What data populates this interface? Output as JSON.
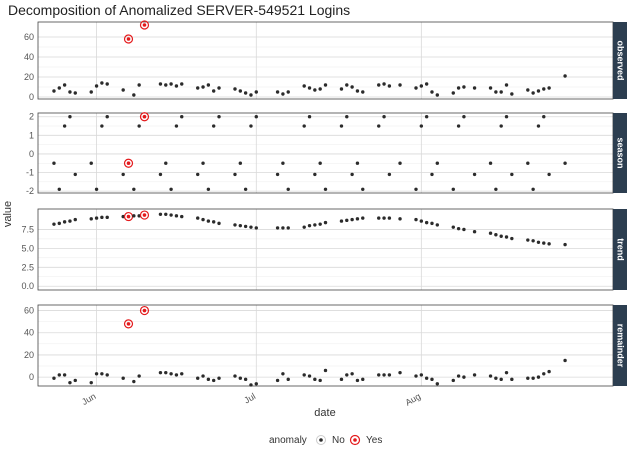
{
  "chart_data": {
    "type": "scatter",
    "title": "Decomposition of Anomalized SERVER-549521 Logins",
    "xlabel": "date",
    "ylabel": "value",
    "x_ticks": [
      "Jun",
      "Jul",
      "Aug"
    ],
    "x_tick_dates": [
      "2011-06-01",
      "2011-07-01",
      "2011-08-01"
    ],
    "x_range": [
      "2011-05-21",
      "2011-09-06"
    ],
    "legend": {
      "title": "anomaly",
      "entries": [
        "No",
        "Yes"
      ],
      "position": "bottom"
    },
    "colors": {
      "normal": "#2b2b2b",
      "anomaly": "#e41a1c",
      "strip": "#2c3e50"
    },
    "facets": [
      {
        "name": "observed",
        "ylim": [
          -2,
          75
        ],
        "yticks": [
          "0",
          "20",
          "40",
          "60"
        ],
        "ytick_values": [
          0,
          20,
          40,
          60
        ],
        "points": [
          [
            "2011-05-24",
            6
          ],
          [
            "2011-05-25",
            9
          ],
          [
            "2011-05-26",
            12
          ],
          [
            "2011-05-27",
            5
          ],
          [
            "2011-05-28",
            4
          ],
          [
            "2011-05-31",
            5
          ],
          [
            "2011-06-01",
            11
          ],
          [
            "2011-06-02",
            14
          ],
          [
            "2011-06-03",
            13
          ],
          [
            "2011-06-06",
            7
          ],
          [
            "2011-06-07",
            58,
            "yes"
          ],
          [
            "2011-06-08",
            2
          ],
          [
            "2011-06-09",
            12
          ],
          [
            "2011-06-10",
            72,
            "yes"
          ],
          [
            "2011-06-13",
            13
          ],
          [
            "2011-06-14",
            12
          ],
          [
            "2011-06-15",
            13
          ],
          [
            "2011-06-16",
            11
          ],
          [
            "2011-06-17",
            13
          ],
          [
            "2011-06-20",
            9
          ],
          [
            "2011-06-21",
            10
          ],
          [
            "2011-06-22",
            12
          ],
          [
            "2011-06-23",
            6
          ],
          [
            "2011-06-24",
            9
          ],
          [
            "2011-06-27",
            8
          ],
          [
            "2011-06-28",
            6
          ],
          [
            "2011-06-29",
            4
          ],
          [
            "2011-06-30",
            2
          ],
          [
            "2011-07-01",
            5
          ],
          [
            "2011-07-05",
            5
          ],
          [
            "2011-07-06",
            3
          ],
          [
            "2011-07-07",
            5
          ],
          [
            "2011-07-10",
            11
          ],
          [
            "2011-07-11",
            9
          ],
          [
            "2011-07-12",
            7
          ],
          [
            "2011-07-13",
            8
          ],
          [
            "2011-07-14",
            12
          ],
          [
            "2011-07-17",
            8
          ],
          [
            "2011-07-18",
            12
          ],
          [
            "2011-07-19",
            10
          ],
          [
            "2011-07-20",
            6
          ],
          [
            "2011-07-21",
            5
          ],
          [
            "2011-07-24",
            12
          ],
          [
            "2011-07-25",
            13
          ],
          [
            "2011-07-26",
            11
          ],
          [
            "2011-07-28",
            12
          ],
          [
            "2011-07-31",
            9
          ],
          [
            "2011-08-01",
            11
          ],
          [
            "2011-08-02",
            13
          ],
          [
            "2011-08-03",
            5
          ],
          [
            "2011-08-04",
            2
          ],
          [
            "2011-08-07",
            4
          ],
          [
            "2011-08-08",
            9
          ],
          [
            "2011-08-09",
            10
          ],
          [
            "2011-08-11",
            9
          ],
          [
            "2011-08-14",
            9
          ],
          [
            "2011-08-15",
            5
          ],
          [
            "2011-08-16",
            5
          ],
          [
            "2011-08-17",
            12
          ],
          [
            "2011-08-18",
            3
          ],
          [
            "2011-08-21",
            7
          ],
          [
            "2011-08-22",
            4
          ],
          [
            "2011-08-23",
            6
          ],
          [
            "2011-08-24",
            8
          ],
          [
            "2011-08-25",
            9
          ],
          [
            "2011-08-28",
            21
          ]
        ]
      },
      {
        "name": "season",
        "ylim": [
          -2.1,
          2.2
        ],
        "yticks": [
          "-2",
          "-1",
          "0",
          "1",
          "2"
        ],
        "ytick_values": [
          -2,
          -1,
          0,
          1,
          2
        ],
        "points": [
          [
            "2011-05-24",
            -0.5
          ],
          [
            "2011-05-25",
            -1.9
          ],
          [
            "2011-05-26",
            1.5
          ],
          [
            "2011-05-27",
            2.0
          ],
          [
            "2011-05-28",
            -1.1
          ],
          [
            "2011-05-31",
            -0.5
          ],
          [
            "2011-06-01",
            -1.9
          ],
          [
            "2011-06-02",
            1.5
          ],
          [
            "2011-06-03",
            2.0
          ],
          [
            "2011-06-06",
            -1.1
          ],
          [
            "2011-06-07",
            -0.5,
            "yes"
          ],
          [
            "2011-06-08",
            -1.9
          ],
          [
            "2011-06-09",
            1.5
          ],
          [
            "2011-06-10",
            2.0,
            "yes"
          ],
          [
            "2011-06-13",
            -1.1
          ],
          [
            "2011-06-14",
            -0.5
          ],
          [
            "2011-06-15",
            -1.9
          ],
          [
            "2011-06-16",
            1.5
          ],
          [
            "2011-06-17",
            2.0
          ],
          [
            "2011-06-20",
            -1.1
          ],
          [
            "2011-06-21",
            -0.5
          ],
          [
            "2011-06-22",
            -1.9
          ],
          [
            "2011-06-23",
            1.5
          ],
          [
            "2011-06-24",
            2.0
          ],
          [
            "2011-06-27",
            -1.1
          ],
          [
            "2011-06-28",
            -0.5
          ],
          [
            "2011-06-29",
            -1.9
          ],
          [
            "2011-06-30",
            1.5
          ],
          [
            "2011-07-01",
            2.0
          ],
          [
            "2011-07-05",
            -1.1
          ],
          [
            "2011-07-06",
            -0.5
          ],
          [
            "2011-07-07",
            -1.9
          ],
          [
            "2011-07-10",
            1.5
          ],
          [
            "2011-07-11",
            2.0
          ],
          [
            "2011-07-12",
            -1.1
          ],
          [
            "2011-07-13",
            -0.5
          ],
          [
            "2011-07-14",
            -1.9
          ],
          [
            "2011-07-17",
            1.5
          ],
          [
            "2011-07-18",
            2.0
          ],
          [
            "2011-07-19",
            -1.1
          ],
          [
            "2011-07-20",
            -0.5
          ],
          [
            "2011-07-21",
            -1.9
          ],
          [
            "2011-07-24",
            1.5
          ],
          [
            "2011-07-25",
            2.0
          ],
          [
            "2011-07-26",
            -1.1
          ],
          [
            "2011-07-28",
            -0.5
          ],
          [
            "2011-07-31",
            -1.9
          ],
          [
            "2011-08-01",
            1.5
          ],
          [
            "2011-08-02",
            2.0
          ],
          [
            "2011-08-03",
            -1.1
          ],
          [
            "2011-08-04",
            -0.5
          ],
          [
            "2011-08-07",
            -1.9
          ],
          [
            "2011-08-08",
            1.5
          ],
          [
            "2011-08-09",
            2.0
          ],
          [
            "2011-08-11",
            -1.1
          ],
          [
            "2011-08-14",
            -0.5
          ],
          [
            "2011-08-15",
            -1.9
          ],
          [
            "2011-08-16",
            1.5
          ],
          [
            "2011-08-17",
            2.0
          ],
          [
            "2011-08-18",
            -1.1
          ],
          [
            "2011-08-21",
            -0.5
          ],
          [
            "2011-08-22",
            -1.9
          ],
          [
            "2011-08-23",
            1.5
          ],
          [
            "2011-08-24",
            2.0
          ],
          [
            "2011-08-25",
            -1.1
          ],
          [
            "2011-08-28",
            -0.5
          ]
        ]
      },
      {
        "name": "trend",
        "ylim": [
          -0.5,
          10.2
        ],
        "yticks": [
          "0.0",
          "2.5",
          "5.0",
          "7.5"
        ],
        "ytick_values": [
          0,
          2.5,
          5,
          7.5
        ],
        "points": [
          [
            "2011-05-24",
            8.2
          ],
          [
            "2011-05-25",
            8.3
          ],
          [
            "2011-05-26",
            8.5
          ],
          [
            "2011-05-27",
            8.6
          ],
          [
            "2011-05-28",
            8.8
          ],
          [
            "2011-05-31",
            8.9
          ],
          [
            "2011-06-01",
            9.0
          ],
          [
            "2011-06-02",
            9.1
          ],
          [
            "2011-06-03",
            9.1
          ],
          [
            "2011-06-06",
            9.2
          ],
          [
            "2011-06-07",
            9.2,
            "yes"
          ],
          [
            "2011-06-08",
            9.3
          ],
          [
            "2011-06-09",
            9.3
          ],
          [
            "2011-06-10",
            9.4,
            "yes"
          ],
          [
            "2011-06-13",
            9.5
          ],
          [
            "2011-06-14",
            9.5
          ],
          [
            "2011-06-15",
            9.4
          ],
          [
            "2011-06-16",
            9.3
          ],
          [
            "2011-06-17",
            9.2
          ],
          [
            "2011-06-20",
            9.0
          ],
          [
            "2011-06-21",
            8.8
          ],
          [
            "2011-06-22",
            8.6
          ],
          [
            "2011-06-23",
            8.5
          ],
          [
            "2011-06-24",
            8.3
          ],
          [
            "2011-06-27",
            8.1
          ],
          [
            "2011-06-28",
            8.0
          ],
          [
            "2011-06-29",
            7.9
          ],
          [
            "2011-06-30",
            7.8
          ],
          [
            "2011-07-01",
            7.7
          ],
          [
            "2011-07-05",
            7.7
          ],
          [
            "2011-07-06",
            7.7
          ],
          [
            "2011-07-07",
            7.7
          ],
          [
            "2011-07-10",
            7.8
          ],
          [
            "2011-07-11",
            8.0
          ],
          [
            "2011-07-12",
            8.1
          ],
          [
            "2011-07-13",
            8.2
          ],
          [
            "2011-07-14",
            8.4
          ],
          [
            "2011-07-17",
            8.6
          ],
          [
            "2011-07-18",
            8.7
          ],
          [
            "2011-07-19",
            8.8
          ],
          [
            "2011-07-20",
            8.9
          ],
          [
            "2011-07-21",
            9.0
          ],
          [
            "2011-07-24",
            9.0
          ],
          [
            "2011-07-25",
            9.0
          ],
          [
            "2011-07-26",
            9.0
          ],
          [
            "2011-07-28",
            8.9
          ],
          [
            "2011-07-31",
            8.8
          ],
          [
            "2011-08-01",
            8.6
          ],
          [
            "2011-08-02",
            8.4
          ],
          [
            "2011-08-03",
            8.3
          ],
          [
            "2011-08-04",
            8.1
          ],
          [
            "2011-08-07",
            7.8
          ],
          [
            "2011-08-08",
            7.6
          ],
          [
            "2011-08-09",
            7.5
          ],
          [
            "2011-08-11",
            7.2
          ],
          [
            "2011-08-14",
            7.0
          ],
          [
            "2011-08-15",
            6.8
          ],
          [
            "2011-08-16",
            6.6
          ],
          [
            "2011-08-17",
            6.5
          ],
          [
            "2011-08-18",
            6.3
          ],
          [
            "2011-08-21",
            6.1
          ],
          [
            "2011-08-22",
            6.0
          ],
          [
            "2011-08-23",
            5.8
          ],
          [
            "2011-08-24",
            5.7
          ],
          [
            "2011-08-25",
            5.6
          ],
          [
            "2011-08-28",
            5.5
          ]
        ]
      },
      {
        "name": "remainder",
        "ylim": [
          -8,
          65
        ],
        "yticks": [
          "0",
          "20",
          "40",
          "60"
        ],
        "ytick_values": [
          0,
          20,
          40,
          60
        ],
        "points": [
          [
            "2011-05-24",
            -1
          ],
          [
            "2011-05-25",
            2
          ],
          [
            "2011-05-26",
            2
          ],
          [
            "2011-05-27",
            -5
          ],
          [
            "2011-05-28",
            -3
          ],
          [
            "2011-05-31",
            -5
          ],
          [
            "2011-06-01",
            3
          ],
          [
            "2011-06-02",
            3
          ],
          [
            "2011-06-03",
            2
          ],
          [
            "2011-06-06",
            -1
          ],
          [
            "2011-06-07",
            48,
            "yes"
          ],
          [
            "2011-06-08",
            -4
          ],
          [
            "2011-06-09",
            1
          ],
          [
            "2011-06-10",
            60,
            "yes"
          ],
          [
            "2011-06-13",
            4
          ],
          [
            "2011-06-14",
            4
          ],
          [
            "2011-06-15",
            3
          ],
          [
            "2011-06-16",
            2
          ],
          [
            "2011-06-17",
            3
          ],
          [
            "2011-06-20",
            -1
          ],
          [
            "2011-06-21",
            1
          ],
          [
            "2011-06-22",
            -2
          ],
          [
            "2011-06-23",
            -3
          ],
          [
            "2011-06-24",
            -1
          ],
          [
            "2011-06-27",
            1
          ],
          [
            "2011-06-28",
            -1
          ],
          [
            "2011-06-29",
            -2
          ],
          [
            "2011-06-30",
            -7
          ],
          [
            "2011-07-01",
            -6
          ],
          [
            "2011-07-05",
            -3
          ],
          [
            "2011-07-06",
            3
          ],
          [
            "2011-07-07",
            -2
          ],
          [
            "2011-07-10",
            2
          ],
          [
            "2011-07-11",
            1
          ],
          [
            "2011-07-12",
            -2
          ],
          [
            "2011-07-13",
            -3
          ],
          [
            "2011-07-14",
            6
          ],
          [
            "2011-07-17",
            -2
          ],
          [
            "2011-07-18",
            2
          ],
          [
            "2011-07-19",
            3
          ],
          [
            "2011-07-20",
            -3
          ],
          [
            "2011-07-21",
            -2
          ],
          [
            "2011-07-24",
            2
          ],
          [
            "2011-07-25",
            2
          ],
          [
            "2011-07-26",
            2
          ],
          [
            "2011-07-28",
            4
          ],
          [
            "2011-07-31",
            1
          ],
          [
            "2011-08-01",
            2
          ],
          [
            "2011-08-02",
            -1
          ],
          [
            "2011-08-03",
            -2
          ],
          [
            "2011-08-04",
            -6
          ],
          [
            "2011-08-07",
            -3
          ],
          [
            "2011-08-08",
            1
          ],
          [
            "2011-08-09",
            0
          ],
          [
            "2011-08-11",
            2
          ],
          [
            "2011-08-14",
            1
          ],
          [
            "2011-08-15",
            -1
          ],
          [
            "2011-08-16",
            -2
          ],
          [
            "2011-08-17",
            4
          ],
          [
            "2011-08-18",
            -2
          ],
          [
            "2011-08-21",
            -1
          ],
          [
            "2011-08-22",
            -1
          ],
          [
            "2011-08-23",
            0
          ],
          [
            "2011-08-24",
            3
          ],
          [
            "2011-08-25",
            5
          ],
          [
            "2011-08-28",
            15
          ]
        ]
      }
    ]
  }
}
